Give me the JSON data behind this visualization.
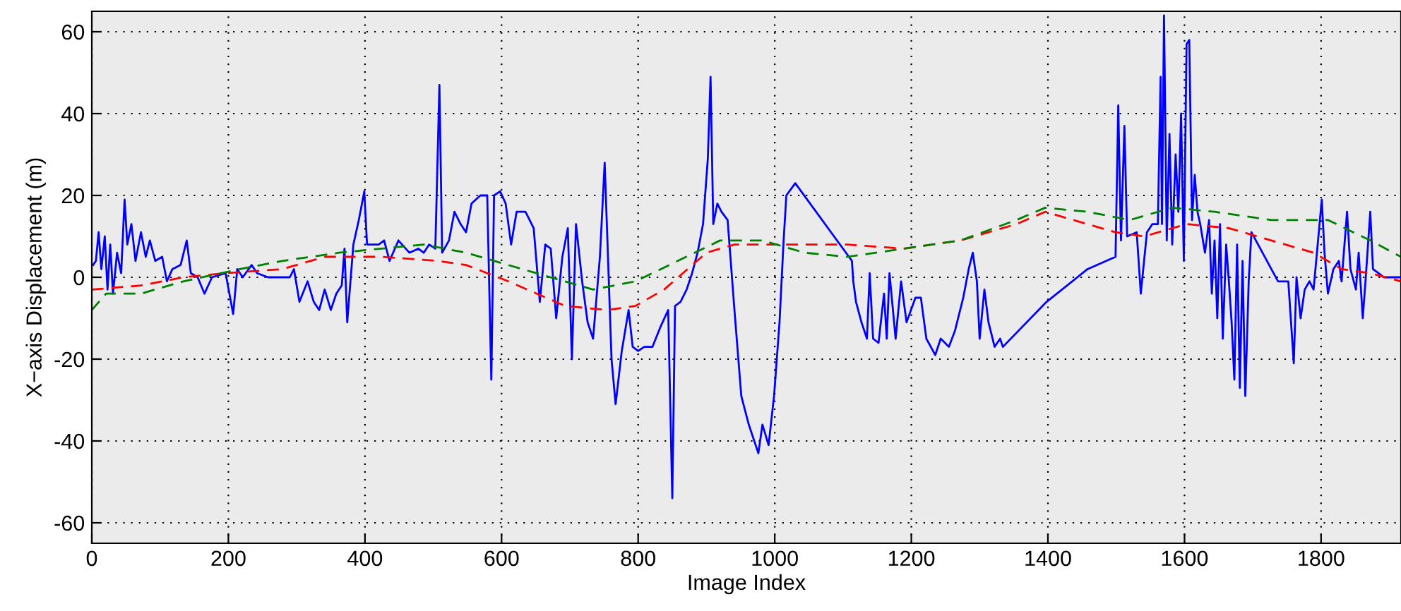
{
  "chart_data": {
    "type": "line",
    "xlabel": "Image Index",
    "ylabel": "X−axis Displacement (m)",
    "xlim": [
      0,
      1917
    ],
    "ylim": [
      -65,
      65
    ],
    "xticks": [
      0,
      200,
      400,
      600,
      800,
      1000,
      1200,
      1400,
      1600,
      1800
    ],
    "yticks": [
      -60,
      -40,
      -20,
      0,
      20,
      40,
      60
    ],
    "grid": true,
    "legend": false,
    "marker": "none",
    "series": [
      {
        "color": "#0000ff",
        "line_style": "solid",
        "x": [
          2,
          6,
          10,
          14,
          19,
          23,
          27,
          31,
          37,
          43,
          48,
          52,
          58,
          64,
          72,
          79,
          85,
          93,
          103,
          110,
          118,
          130,
          139,
          145,
          155,
          165,
          176,
          196,
          207,
          213,
          221,
          234,
          242,
          258,
          279,
          290,
          296,
          304,
          316,
          325,
          333,
          341,
          350,
          358,
          366,
          370,
          374,
          383,
          391,
          399,
          403,
          411,
          420,
          428,
          436,
          449,
          465,
          478,
          486,
          494,
          503,
          509,
          513,
          523,
          531,
          540,
          548,
          556,
          569,
          579,
          585,
          589,
          598,
          606,
          614,
          622,
          635,
          647,
          656,
          664,
          672,
          680,
          689,
          697,
          703,
          709,
          718,
          726,
          734,
          744,
          751,
          755,
          761,
          767,
          776,
          786,
          792,
          800,
          809,
          821,
          833,
          844,
          850,
          854,
          862,
          871,
          879,
          887,
          895,
          902,
          906,
          910,
          916,
          922,
          931,
          941,
          951,
          962,
          976,
          982,
          991,
          999,
          1007,
          1013,
          1017,
          1030,
          1113,
          1115,
          1119,
          1127,
          1135,
          1139,
          1144,
          1152,
          1160,
          1164,
          1168,
          1177,
          1185,
          1193,
          1206,
          1214,
          1222,
          1235,
          1243,
          1255,
          1264,
          1276,
          1284,
          1290,
          1296,
          1300,
          1307,
          1313,
          1322,
          1330,
          1334,
          1398,
          1458,
          1499,
          1503,
          1507,
          1512,
          1516,
          1530,
          1536,
          1545,
          1553,
          1561,
          1565,
          1567,
          1570,
          1574,
          1578,
          1582,
          1587,
          1591,
          1595,
          1599,
          1603,
          1607,
          1611,
          1615,
          1619,
          1623,
          1630,
          1636,
          1640,
          1644,
          1648,
          1652,
          1656,
          1661,
          1665,
          1669,
          1673,
          1677,
          1681,
          1685,
          1689,
          1694,
          1698,
          1737,
          1752,
          1760,
          1764,
          1770,
          1776,
          1783,
          1789,
          1801,
          1805,
          1810,
          1818,
          1826,
          1830,
          1838,
          1843,
          1851,
          1855,
          1861,
          1865,
          1872,
          1876,
          1884,
          1892,
          1902,
          1917
        ],
        "values": [
          3,
          4,
          11,
          2,
          10,
          -3,
          8,
          -4,
          6,
          1,
          19,
          8,
          13,
          4,
          11,
          5,
          9,
          4,
          5,
          -1,
          2,
          3,
          9,
          1,
          0,
          -4,
          0,
          1,
          -9,
          2,
          0,
          3,
          1,
          0,
          0,
          0,
          2,
          -6,
          -1,
          -6,
          -8,
          -3,
          -8,
          -4,
          -2,
          7,
          -11,
          8,
          14,
          21,
          8,
          8,
          8,
          9,
          4,
          9,
          6,
          7,
          6,
          8,
          7,
          47,
          6,
          9,
          16,
          13,
          11,
          18,
          20,
          20,
          -25,
          20,
          21,
          18,
          8,
          16,
          16,
          12,
          -6,
          8,
          7,
          -10,
          5,
          12,
          -20,
          13,
          -1,
          -11,
          -15,
          5,
          28,
          9,
          -20,
          -31,
          -18,
          -8,
          -17,
          -18,
          -17,
          -17,
          -12,
          -8,
          -54,
          -7,
          -6,
          -3,
          1,
          6,
          13,
          29,
          49,
          13,
          18,
          16,
          14,
          -8,
          -29,
          -36,
          -43,
          -36,
          -41,
          -29,
          -11,
          9,
          20,
          23,
          4,
          -1,
          -6,
          -11,
          -15,
          1,
          -15,
          -16,
          -4,
          -15,
          1,
          -15,
          -1,
          -11,
          -5,
          -5,
          -15,
          -19,
          -15,
          -17,
          -13,
          -5,
          2,
          6,
          -1,
          -15,
          -3,
          -11,
          -17,
          -15,
          -17,
          -6,
          2,
          5,
          42,
          9,
          37,
          10,
          11,
          -4,
          11,
          13,
          13,
          49,
          13,
          64,
          9,
          35,
          8,
          30,
          16,
          40,
          4,
          57,
          58,
          14,
          25,
          16,
          13,
          6,
          14,
          -4,
          9,
          -10,
          13,
          -15,
          8,
          -1,
          -11,
          -25,
          8,
          -27,
          4,
          -29,
          -1,
          11,
          -1,
          -1,
          -21,
          0,
          -10,
          -3,
          -1,
          -3,
          19,
          6,
          -4,
          2,
          4,
          -1,
          16,
          2,
          -3,
          6,
          -10,
          -1,
          16,
          2,
          1,
          0,
          0,
          0
        ]
      },
      {
        "color": "#ff0000",
        "line_style": "dashed",
        "x": [
          0,
          72,
          134,
          196,
          279,
          341,
          424,
          507,
          548,
          610,
          693,
          755,
          796,
          838,
          900,
          941,
          1024,
          1106,
          1189,
          1272,
          1354,
          1396,
          1437,
          1499,
          1541,
          1603,
          1665,
          1727,
          1789,
          1830,
          1872,
          1917
        ],
        "values": [
          -3,
          -2,
          0,
          1,
          2,
          5,
          5,
          4,
          3,
          -1,
          -7,
          -8,
          -7,
          -3,
          6,
          8,
          8,
          8,
          7,
          9,
          13,
          16,
          14,
          11,
          10,
          13,
          12,
          9,
          6,
          2,
          1,
          -1
        ]
      },
      {
        "color": "#008000",
        "line_style": "dashed",
        "x": [
          0,
          21,
          72,
          134,
          217,
          279,
          362,
          486,
          548,
          651,
          734,
          796,
          858,
          920,
          982,
          1044,
          1106,
          1189,
          1272,
          1354,
          1396,
          1458,
          1520,
          1582,
          1644,
          1727,
          1810,
          1872,
          1917
        ],
        "values": [
          -8,
          -4,
          -4,
          -1,
          2,
          4,
          6,
          8,
          6,
          1,
          -3,
          -1,
          4,
          9,
          9,
          6,
          5,
          7,
          9,
          14,
          17,
          16,
          14,
          17,
          16,
          14,
          14,
          9,
          5
        ]
      }
    ]
  }
}
